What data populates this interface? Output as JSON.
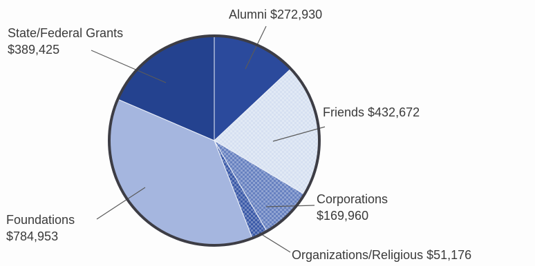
{
  "chart_data": {
    "type": "pie",
    "title": "",
    "slices": [
      {
        "label": "Alumni",
        "value": 272930,
        "display": "$272,930",
        "color": "#2b4a9c",
        "pattern": "solid"
      },
      {
        "label": "Friends",
        "value": 432672,
        "display": "$432,672",
        "color": "#d6e0f1",
        "pattern": "checker"
      },
      {
        "label": "Corporations",
        "value": 169960,
        "display": "$169,960",
        "color": "#6781c0",
        "pattern": "checker"
      },
      {
        "label": "Organizations/Religious",
        "value": 51176,
        "display": "$51,176",
        "color": "#3b5aa8",
        "pattern": "checker"
      },
      {
        "label": "Foundations",
        "value": 784953,
        "display": "$784,953",
        "color": "#a5b6df",
        "pattern": "solid"
      },
      {
        "label": "State/Federal Grants",
        "value": 389425,
        "display": "$389,425",
        "color": "#24428f",
        "pattern": "solid"
      }
    ],
    "start_angle_deg": 0,
    "direction": "clockwise",
    "outline_color": "#3d3d45"
  }
}
